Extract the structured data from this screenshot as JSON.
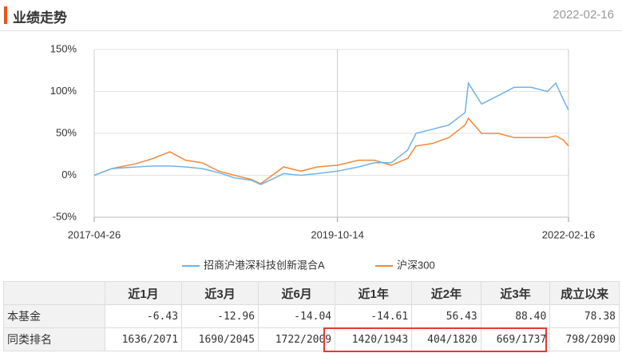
{
  "header": {
    "title": "业绩走势",
    "date": "2022-02-16"
  },
  "chart_data": {
    "type": "line",
    "x": [
      "2017-04-26",
      "2017-06-30",
      "2017-09-29",
      "2017-11-30",
      "2018-01-31",
      "2018-03-30",
      "2018-05-31",
      "2018-07-31",
      "2018-09-28",
      "2018-11-30",
      "2019-01-03",
      "2019-03-29",
      "2019-05-31",
      "2019-07-31",
      "2019-10-14",
      "2019-12-31",
      "2020-02-28",
      "2020-04-30",
      "2020-06-30",
      "2020-07-31",
      "2020-09-30",
      "2020-11-30",
      "2021-01-29",
      "2021-02-10",
      "2021-03-31",
      "2021-05-31",
      "2021-07-30",
      "2021-09-30",
      "2021-11-30",
      "2021-12-31",
      "2022-01-28",
      "2022-02-16"
    ],
    "series": [
      {
        "name": "招商沪港深科技创新混合A",
        "color": "#6fb3e8",
        "values": [
          0,
          8,
          10,
          11,
          11,
          10,
          8,
          3,
          -3,
          -6,
          -11,
          2,
          0,
          2,
          5,
          10,
          15,
          15,
          30,
          50,
          55,
          60,
          75,
          110,
          85,
          95,
          105,
          105,
          100,
          110,
          90,
          78
        ]
      },
      {
        "name": "沪深300",
        "color": "#f0893b",
        "values": [
          0,
          8,
          14,
          20,
          28,
          18,
          15,
          5,
          0,
          -5,
          -10,
          10,
          5,
          10,
          12,
          18,
          18,
          12,
          20,
          35,
          38,
          45,
          60,
          68,
          50,
          50,
          45,
          45,
          45,
          47,
          42,
          35
        ]
      }
    ],
    "xlim": [
      "2017-04-26",
      "2022-02-16"
    ],
    "xticks": [
      "2017-04-26",
      "2019-10-14",
      "2022-02-16"
    ],
    "ylim": [
      -50,
      150
    ],
    "yticks": [
      {
        "value": -50,
        "label": "-50%"
      },
      {
        "value": 0,
        "label": "0%"
      },
      {
        "value": 50,
        "label": "50%"
      },
      {
        "value": 100,
        "label": "100%"
      },
      {
        "value": 150,
        "label": "150%"
      }
    ],
    "grid": true,
    "legend": "bottom"
  },
  "table": {
    "columns": [
      "近1月",
      "近3月",
      "近6月",
      "近1年",
      "近2年",
      "近3年",
      "成立以来"
    ],
    "rows": [
      {
        "label": "本基金",
        "cells": [
          "-6.43",
          "-12.96",
          "-14.04",
          "-14.61",
          "56.43",
          "88.40",
          "78.38"
        ]
      },
      {
        "label": "同类排名",
        "cells": [
          "1636/2071",
          "1690/2045",
          "1722/2009",
          "1420/1943",
          "404/1820",
          "669/1737",
          "798/2090"
        ]
      }
    ]
  }
}
